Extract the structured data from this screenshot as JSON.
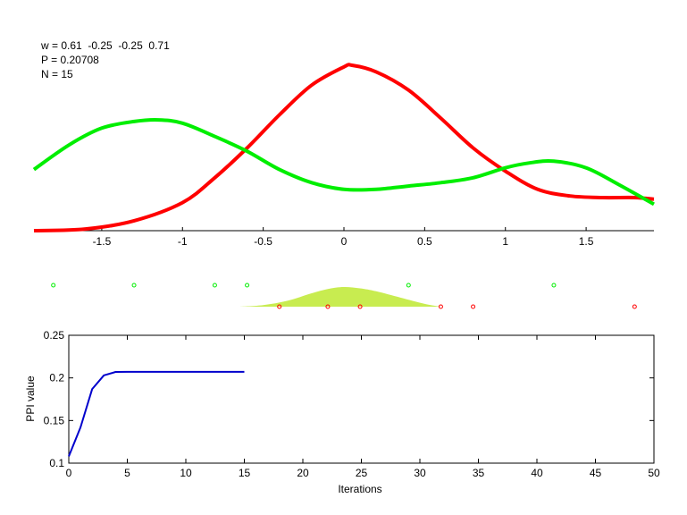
{
  "info": {
    "w_line": "w = 0.61  -0.25  -0.25  0.71",
    "p_line": "P = 0.20708",
    "n_line": "N = 15"
  },
  "colors": {
    "red": "#ff0000",
    "green": "#00ee00",
    "fill": "#c8ec50",
    "blue": "#0000cc"
  },
  "chart_data": [
    {
      "type": "line",
      "xlim": [
        -1.92,
        1.92
      ],
      "x_ticks": [
        -1.5,
        -1,
        -0.5,
        0,
        0.5,
        1,
        1.5
      ],
      "x_tick_labels": [
        "-1.5",
        "-1",
        "-0.5",
        "0",
        "0.5",
        "1",
        "1.5"
      ],
      "y_axis_visible": false,
      "series": [
        {
          "color": "red",
          "x": [
            -1.92,
            -1.6,
            -1.3,
            -1.0,
            -0.8,
            -0.6,
            -0.4,
            -0.2,
            0.0,
            0.05,
            0.2,
            0.4,
            0.6,
            0.8,
            1.0,
            1.2,
            1.4,
            1.6,
            1.8,
            1.92
          ],
          "y": [
            0.0,
            0.01,
            0.06,
            0.17,
            0.32,
            0.5,
            0.7,
            0.88,
            0.99,
            1.0,
            0.96,
            0.85,
            0.68,
            0.5,
            0.36,
            0.25,
            0.21,
            0.2,
            0.2,
            0.19
          ]
        },
        {
          "color": "green",
          "x": [
            -1.92,
            -1.7,
            -1.5,
            -1.3,
            -1.15,
            -1.0,
            -0.8,
            -0.6,
            -0.4,
            -0.2,
            0.0,
            0.2,
            0.4,
            0.6,
            0.8,
            1.0,
            1.15,
            1.3,
            1.5,
            1.7,
            1.92
          ],
          "y": [
            0.37,
            0.52,
            0.62,
            0.66,
            0.67,
            0.65,
            0.57,
            0.48,
            0.37,
            0.29,
            0.25,
            0.25,
            0.27,
            0.29,
            0.32,
            0.38,
            0.41,
            0.42,
            0.38,
            0.28,
            0.16
          ]
        }
      ]
    },
    {
      "type": "scatter",
      "xlim": [
        -1.92,
        1.92
      ],
      "green_points_x": [
        -1.8,
        -1.3,
        -0.8,
        -0.6,
        0.4,
        1.3
      ],
      "red_points_x": [
        -0.4,
        -0.1,
        0.1,
        0.6,
        0.8,
        1.8
      ],
      "density_x": [
        -0.65,
        -0.5,
        -0.35,
        -0.2,
        -0.1,
        0.0,
        0.1,
        0.2,
        0.35,
        0.5,
        0.6
      ],
      "density_y": [
        0.0,
        0.08,
        0.3,
        0.68,
        0.9,
        1.0,
        0.93,
        0.78,
        0.46,
        0.14,
        0.0
      ]
    },
    {
      "type": "line",
      "xlabel": "Iterations",
      "ylabel": "PPI value",
      "xlim": [
        0,
        50
      ],
      "ylim": [
        0.1,
        0.25
      ],
      "x_ticks": [
        0,
        5,
        10,
        15,
        20,
        25,
        30,
        35,
        40,
        45,
        50
      ],
      "x_tick_labels": [
        "0",
        "5",
        "10",
        "15",
        "20",
        "25",
        "30",
        "35",
        "40",
        "45",
        "50"
      ],
      "y_ticks": [
        0.1,
        0.15,
        0.2,
        0.25
      ],
      "y_tick_labels": [
        "0.1",
        "0.15",
        "0.2",
        "0.25"
      ],
      "series": [
        {
          "color": "blue",
          "x": [
            0,
            1,
            2,
            3,
            4,
            5,
            6,
            7,
            8,
            9,
            10,
            11,
            12,
            13,
            14,
            15
          ],
          "y": [
            0.108,
            0.142,
            0.187,
            0.203,
            0.207,
            0.20708,
            0.20708,
            0.20708,
            0.20708,
            0.20708,
            0.20708,
            0.20708,
            0.20708,
            0.20708,
            0.20708,
            0.20708
          ]
        }
      ]
    }
  ]
}
